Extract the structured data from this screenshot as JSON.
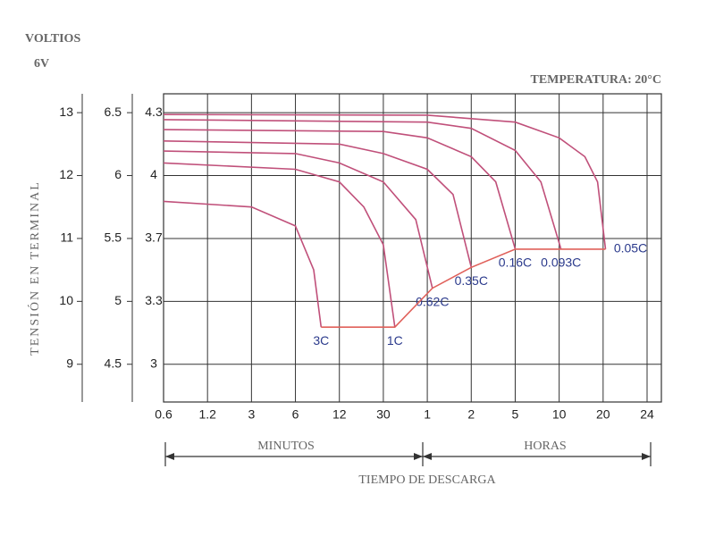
{
  "chart_data": {
    "type": "line",
    "title": "TEMPERATURA: 20°C",
    "unit_label": "VOLTIOS",
    "unit_sub": "6V",
    "y_label": "TENSIÓN EN TERMINAL",
    "x_label": "TIEMPO DE DESCARGA",
    "x_section_labels": [
      "MINUTOS",
      "HORAS"
    ],
    "xticks": [
      0.6,
      1.2,
      3,
      6,
      12,
      30,
      {
        "value": 60,
        "label": "1"
      },
      {
        "value": 120,
        "label": "2"
      },
      {
        "value": 300,
        "label": "5"
      },
      {
        "value": 600,
        "label": "10"
      },
      {
        "value": 1200,
        "label": "20"
      },
      {
        "value": 1440,
        "label": "24"
      }
    ],
    "ylim": [
      8.4,
      13.3
    ],
    "yticks": [
      9,
      10,
      11,
      12,
      13
    ],
    "y2lim": [
      4.2,
      6.65
    ],
    "y2ticks": [
      4.5,
      5.0,
      5.5,
      6.0,
      6.5
    ],
    "y3ticks": [
      3.0,
      3.3,
      3.7,
      4.0,
      4.3
    ],
    "grid": true,
    "series": [
      {
        "name": "3C",
        "color": "#c0507a",
        "x": [
          0.6,
          3,
          6,
          8,
          9
        ],
        "values": [
          11.59,
          11.5,
          11.2,
          10.5,
          9.59
        ]
      },
      {
        "name": "1C",
        "color": "#c0507a",
        "x": [
          0.6,
          6,
          12,
          20,
          30,
          36
        ],
        "values": [
          12.2,
          12.1,
          11.9,
          11.5,
          10.9,
          9.59
        ]
      },
      {
        "name": "0.62C",
        "color": "#c0507a",
        "x": [
          0.6,
          6,
          12,
          30,
          50,
          65
        ],
        "values": [
          12.39,
          12.35,
          12.2,
          11.9,
          11.3,
          10.21
        ]
      },
      {
        "name": "0.35C",
        "color": "#c0507a",
        "x": [
          0.6,
          12,
          30,
          60,
          90,
          120
        ],
        "values": [
          12.55,
          12.5,
          12.35,
          12.1,
          11.7,
          10.54
        ]
      },
      {
        "name": "0.16C",
        "color": "#c0507a",
        "x": [
          0.6,
          30,
          60,
          120,
          200,
          300
        ],
        "values": [
          12.73,
          12.7,
          12.6,
          12.3,
          11.9,
          10.83
        ]
      },
      {
        "name": "0.093C",
        "color": "#c0507a",
        "x": [
          0.6,
          60,
          120,
          300,
          450,
          618
        ],
        "values": [
          12.89,
          12.85,
          12.75,
          12.4,
          11.9,
          10.83
        ]
      },
      {
        "name": "0.05C",
        "color": "#c0507a",
        "x": [
          0.6,
          60,
          300,
          600,
          900,
          1100,
          1212
        ],
        "values": [
          12.97,
          12.96,
          12.85,
          12.6,
          12.3,
          11.9,
          10.83
        ]
      },
      {
        "color": "#e0605a",
        "x": [
          9,
          36,
          65,
          120,
          300,
          618,
          1212
        ],
        "values": [
          9.59,
          9.59,
          10.21,
          10.54,
          10.83,
          10.83,
          10.83
        ]
      }
    ]
  }
}
